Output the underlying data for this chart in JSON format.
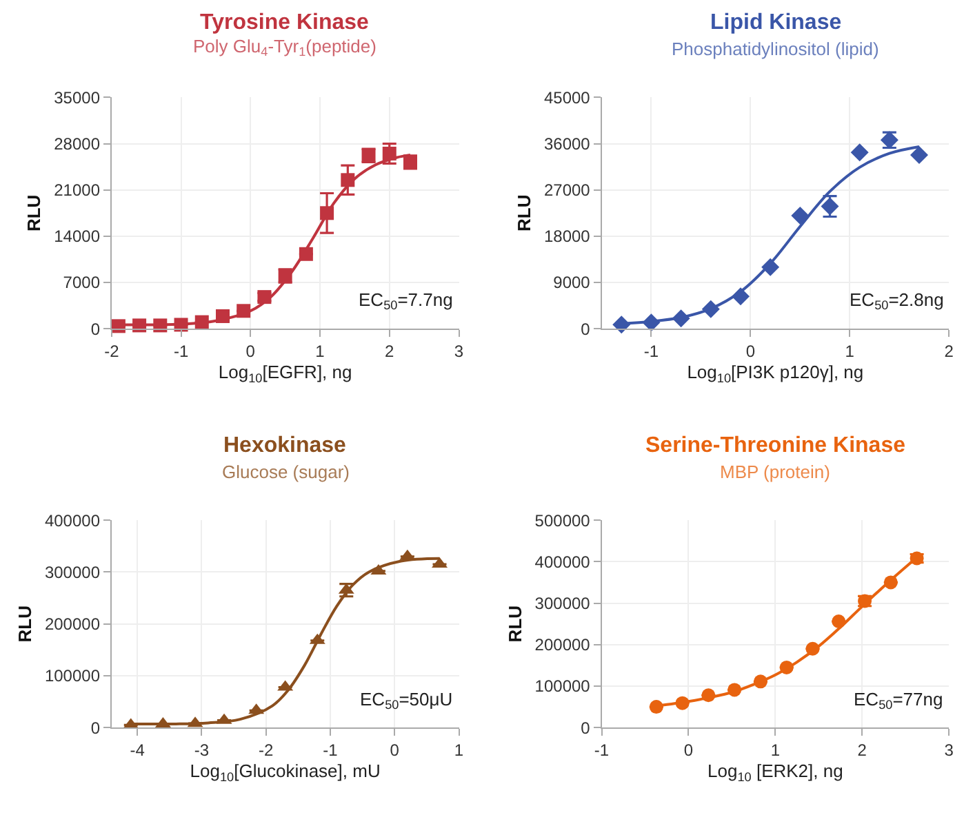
{
  "chart_data": [
    {
      "type": "scatter",
      "title": "Tyrosine Kinase",
      "subtitle": "Poly Glu$_{4}$-Tyr$_{1}$(peptide)",
      "xlabel": "Log$_{10}$[EGFR], ng",
      "ylabel": "RLU",
      "annotations": [
        "EC$_{50}$=7.7ng"
      ],
      "xlim": [
        -2,
        3
      ],
      "xticks": [
        -2,
        -1,
        0,
        1,
        2,
        3
      ],
      "ylim": [
        0,
        35000
      ],
      "yticks": [
        0,
        7000,
        14000,
        21000,
        28000,
        35000
      ],
      "grid": true,
      "marker": "square",
      "series": [
        {
          "color": "#c0343f",
          "x": [
            -1.9,
            -1.6,
            -1.3,
            -1.0,
            -0.7,
            -0.4,
            -0.1,
            0.2,
            0.5,
            0.8,
            1.1,
            1.4,
            1.7,
            2.0,
            2.3
          ],
          "values": [
            400,
            500,
            500,
            600,
            1000,
            1900,
            2700,
            4800,
            8000,
            11300,
            17500,
            22500,
            26200,
            26500,
            25200
          ],
          "errors": [
            null,
            null,
            null,
            null,
            null,
            null,
            null,
            600,
            1000,
            null,
            3000,
            2200,
            1000,
            1500,
            1000
          ]
        },
        {
          "type": "line",
          "color": "#c0343f",
          "marker": "none",
          "x": [
            -1.9,
            -1.0,
            -0.5,
            0,
            0.3,
            0.6,
            0.9,
            1.2,
            1.5,
            1.8,
            2.1,
            2.3
          ],
          "values": [
            600,
            700,
            1200,
            2700,
            4900,
            8700,
            13700,
            19000,
            22700,
            24800,
            25900,
            26300
          ]
        }
      ]
    },
    {
      "type": "scatter",
      "title": "Lipid Kinase",
      "subtitle": "Phosphatidylinositol (lipid)",
      "xlabel": "Log$_{10}$[PI3K p120γ], ng",
      "ylabel": "RLU",
      "annotations": [
        "EC$_{50}$=2.8ng"
      ],
      "xlim": [
        -1.5,
        2
      ],
      "xticks": [
        -1,
        0,
        1,
        2
      ],
      "ylim": [
        0,
        45000
      ],
      "yticks": [
        0,
        9000,
        18000,
        27000,
        36000,
        45000
      ],
      "grid": true,
      "marker": "diamond",
      "series": [
        {
          "color": "#3a56a8",
          "x": [
            -1.3,
            -1.0,
            -0.7,
            -0.4,
            -0.1,
            0.2,
            0.5,
            0.8,
            1.1,
            1.4,
            1.7
          ],
          "values": [
            800,
            1200,
            2000,
            3800,
            6300,
            12000,
            22000,
            23800,
            34300,
            36700,
            33800
          ],
          "errors": [
            null,
            null,
            null,
            null,
            null,
            null,
            null,
            2000,
            null,
            1500,
            null
          ]
        },
        {
          "type": "line",
          "color": "#3a56a8",
          "marker": "none",
          "x": [
            -1.3,
            -1.0,
            -0.7,
            -0.4,
            -0.1,
            0.2,
            0.5,
            0.8,
            1.1,
            1.4,
            1.7
          ],
          "values": [
            1000,
            1400,
            2200,
            3900,
            7200,
            12700,
            19900,
            26700,
            31400,
            34100,
            35400
          ]
        }
      ]
    },
    {
      "type": "scatter",
      "title": "Hexokinase",
      "subtitle": "Glucose (sugar)",
      "xlabel": "Log$_{10}$[Glucokinase], mU",
      "ylabel": "RLU",
      "annotations": [
        "EC$_{50}$=50μU"
      ],
      "xlim": [
        -4.4,
        1
      ],
      "xticks": [
        -4,
        -3,
        -2,
        -1,
        0,
        1
      ],
      "ylim": [
        0,
        400000
      ],
      "yticks": [
        0,
        100000,
        200000,
        300000,
        400000
      ],
      "grid": true,
      "marker": "triangle",
      "series": [
        {
          "color": "#8b4f1e",
          "x": [
            -4.1,
            -3.6,
            -3.1,
            -2.65,
            -2.15,
            -1.7,
            -1.2,
            -0.75,
            -0.25,
            0.2,
            0.7
          ],
          "values": [
            5000,
            7000,
            8000,
            14000,
            33000,
            78000,
            168000,
            265000,
            302000,
            330000,
            315000
          ],
          "errors": [
            null,
            null,
            null,
            null,
            null,
            null,
            null,
            12000,
            null,
            null,
            null
          ]
        },
        {
          "type": "line",
          "color": "#8b4f1e",
          "marker": "none",
          "x": [
            -4.1,
            -3.4,
            -2.9,
            -2.4,
            -1.9,
            -1.65,
            -1.4,
            -1.15,
            -0.9,
            -0.65,
            -0.4,
            0.1,
            0.7
          ],
          "values": [
            7000,
            7000,
            9000,
            16000,
            42000,
            73000,
            120000,
            179000,
            234000,
            275000,
            300000,
            321000,
            326000
          ]
        }
      ]
    },
    {
      "type": "scatter",
      "title": "Serine-Threonine Kinase",
      "subtitle": "MBP (protein)",
      "xlabel": "Log$_{10}$ [ERK2], ng",
      "ylabel": "RLU",
      "annotations": [
        "EC$_{50}$=77ng"
      ],
      "xlim": [
        -1,
        3
      ],
      "xticks": [
        -1,
        0,
        1,
        2,
        3
      ],
      "ylim": [
        0,
        500000
      ],
      "yticks": [
        0,
        100000,
        200000,
        300000,
        400000,
        500000
      ],
      "grid": true,
      "marker": "circle",
      "series": [
        {
          "color": "#e8630f",
          "x": [
            -0.37,
            -0.07,
            0.23,
            0.53,
            0.83,
            1.13,
            1.43,
            1.73,
            2.03,
            2.33,
            2.63
          ],
          "values": [
            50000,
            59000,
            78000,
            91000,
            111000,
            145000,
            190000,
            256000,
            305000,
            350000,
            408000
          ],
          "errors": [
            null,
            null,
            null,
            null,
            null,
            null,
            null,
            null,
            12000,
            null,
            10000
          ]
        },
        {
          "type": "line",
          "color": "#e8630f",
          "marker": "none",
          "x": [
            -0.37,
            0,
            0.25,
            0.5,
            0.75,
            1.0,
            1.25,
            1.5,
            1.75,
            2.0,
            2.3,
            2.63
          ],
          "values": [
            52000,
            63000,
            73000,
            85000,
            104000,
            127000,
            158000,
            196000,
            242000,
            292000,
            350000,
            410000
          ]
        }
      ]
    }
  ]
}
